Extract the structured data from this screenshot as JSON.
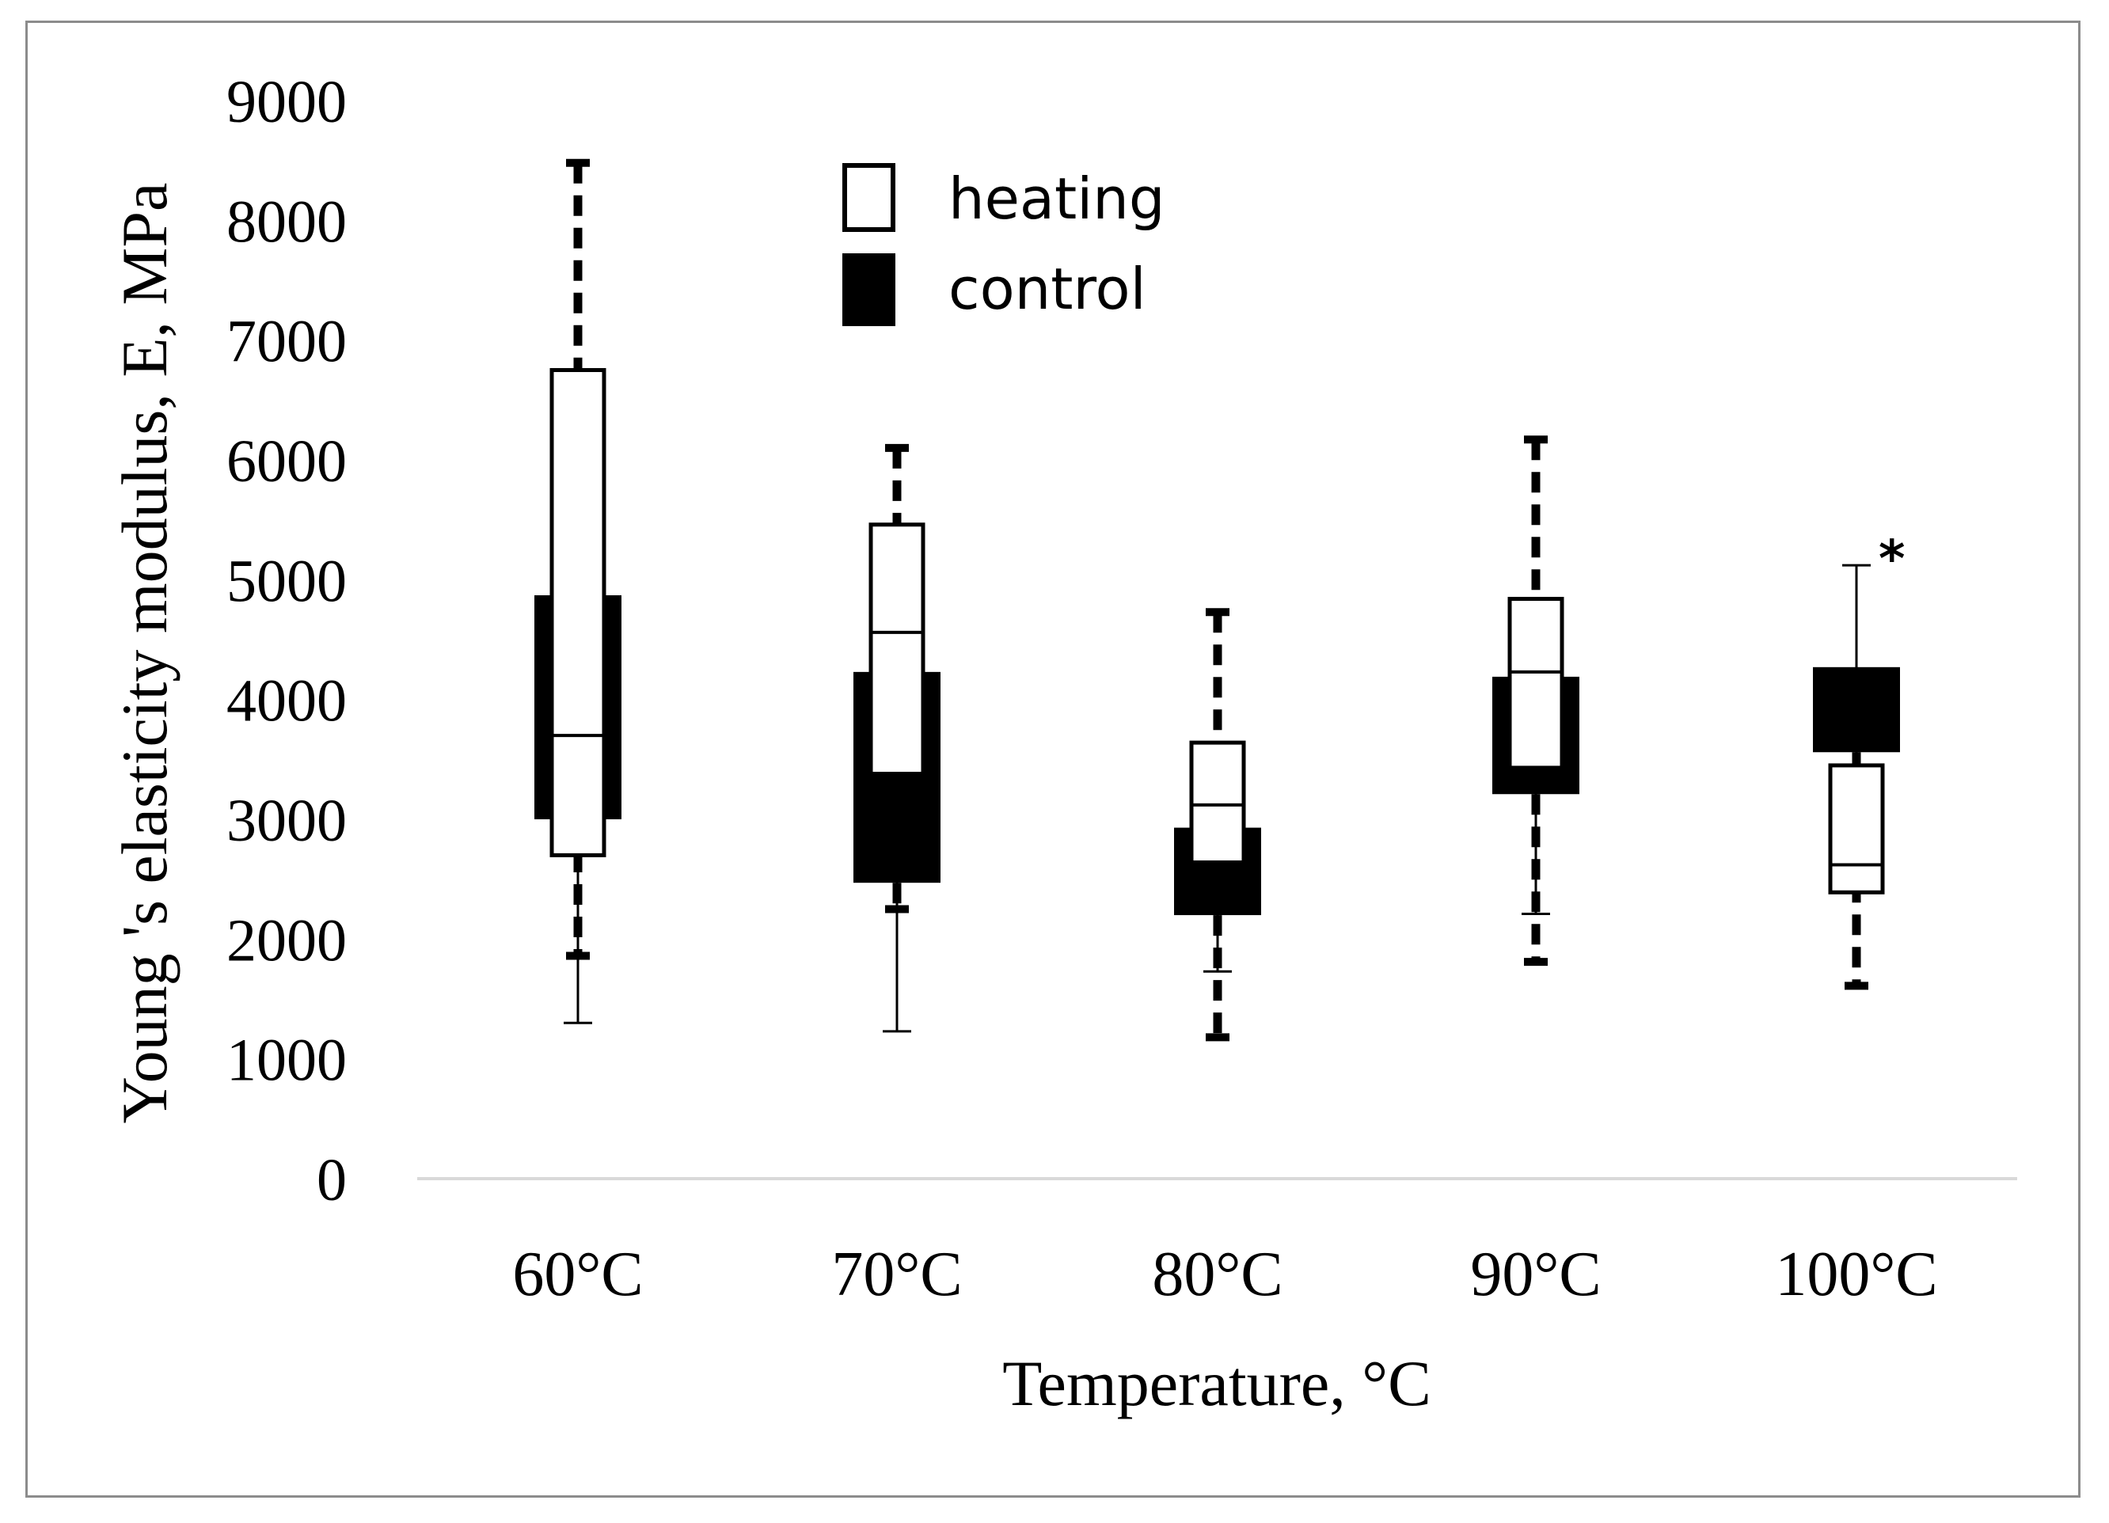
{
  "chart_data": {
    "type": "boxplot",
    "title": "",
    "xlabel": "Temperature, °C",
    "ylabel": "Young 's elasticity modulus, E, MPa",
    "ylim": [
      0,
      9000
    ],
    "yticks": [
      "0",
      "1000",
      "2000",
      "3000",
      "4000",
      "5000",
      "6000",
      "7000",
      "8000",
      "9000"
    ],
    "categories": [
      "60°C",
      "70°C",
      "80°C",
      "90°C",
      "100°C"
    ],
    "legend": {
      "position": "top-center",
      "entries": [
        "heating",
        "control"
      ]
    },
    "series": [
      {
        "name": "heating",
        "style": "white box, thin solid whiskers",
        "boxes": [
          {
            "min": 1300,
            "q1": 2700,
            "median": 3700,
            "q3": 6750,
            "max": 6750
          },
          {
            "min": 1230,
            "q1": 3380,
            "median": 4560,
            "q3": 5460,
            "max": 5460
          },
          {
            "min": 1730,
            "q1": 2640,
            "median": 3120,
            "q3": 3640,
            "max": 3640
          },
          {
            "min": 2210,
            "q1": 3430,
            "median": 4230,
            "q3": 4840,
            "max": 4840
          },
          {
            "min": 2390,
            "q1": 2390,
            "median": 2620,
            "q3": 3450,
            "max": 5120
          }
        ]
      },
      {
        "name": "control",
        "style": "black box, thick dashed whiskers",
        "boxes": [
          {
            "min": 1860,
            "q1": 3000,
            "median": 3000,
            "q3": 4870,
            "max": 8480
          },
          {
            "min": 2250,
            "q1": 2470,
            "median": 2470,
            "q3": 4230,
            "max": 6100
          },
          {
            "min": 1180,
            "q1": 2200,
            "median": 2200,
            "q3": 2930,
            "max": 4730
          },
          {
            "min": 1810,
            "q1": 3210,
            "median": 3210,
            "q3": 4190,
            "max": 6170
          },
          {
            "min": 1610,
            "q1": 3560,
            "median": 3560,
            "q3": 4270,
            "max": 4270
          }
        ]
      }
    ],
    "annotations": [
      {
        "category": "100°C",
        "value": 5120,
        "text": "*"
      }
    ]
  }
}
